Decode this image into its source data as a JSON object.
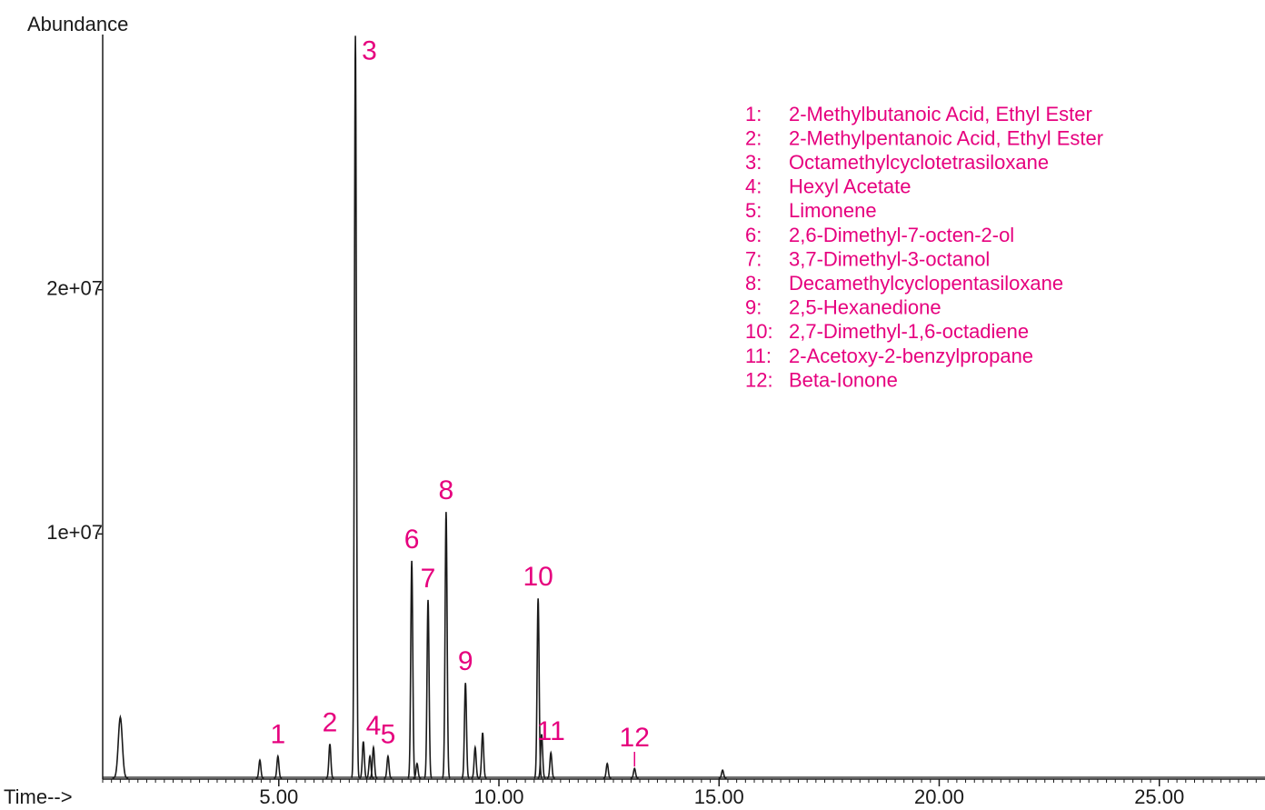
{
  "chart_data": {
    "type": "chromatogram",
    "y_label": "Abundance",
    "x_label": "Time-->",
    "x": [
      1.4,
      4.57,
      4.98,
      6.16,
      6.74,
      6.92,
      7.07,
      7.15,
      7.48,
      8.02,
      8.14,
      8.39,
      8.8,
      9.24,
      9.46,
      9.63,
      10.89,
      10.97,
      11.18,
      12.46,
      13.08,
      15.08
    ],
    "values": [
      2500000,
      740000,
      900000,
      1400000,
      30400000,
      1500000,
      900000,
      1260000,
      900000,
      8900000,
      600000,
      7300000,
      10900000,
      3900000,
      1260000,
      1860000,
      7360000,
      1800000,
      1040000,
      600000,
      400000,
      330000
    ],
    "peak_labels": [
      null,
      null,
      "1",
      "2",
      "3",
      null,
      null,
      "4",
      "5",
      "6",
      null,
      "7",
      "8",
      "9",
      null,
      null,
      "10",
      null,
      "11",
      null,
      "12",
      null
    ],
    "color": "#1a1a1a",
    "label_color": "#e6007e",
    "xlim": [
      1,
      27.4
    ],
    "ylim": [
      0,
      30450000
    ],
    "xticks": [
      {
        "value": 5,
        "label": "5.00"
      },
      {
        "value": 10,
        "label": "10.00"
      },
      {
        "value": 15,
        "label": "15.00"
      },
      {
        "value": 20,
        "label": "20.00"
      },
      {
        "value": 25,
        "label": "25.00"
      }
    ],
    "yticks": [
      {
        "value": 10000000,
        "label": "1e+07"
      },
      {
        "value": 20000000,
        "label": "2e+07"
      }
    ],
    "legend": [
      {
        "number": "1:",
        "name": "2-Methylbutanoic Acid, Ethyl Ester"
      },
      {
        "number": "2:",
        "name": "2-Methylpentanoic Acid, Ethyl Ester"
      },
      {
        "number": "3:",
        "name": "Octamethylcyclotetrasiloxane"
      },
      {
        "number": "4:",
        "name": "Hexyl Acetate"
      },
      {
        "number": "5:",
        "name": "Limonene"
      },
      {
        "number": "6:",
        "name": "2,6-Dimethyl-7-octen-2-ol"
      },
      {
        "number": "7:",
        "name": "3,7-Dimethyl-3-octanol"
      },
      {
        "number": "8:",
        "name": "Decamethylcyclopentasiloxane"
      },
      {
        "number": "9:",
        "name": "2,5-Hexanedione"
      },
      {
        "number": "10:",
        "name": "2,7-Dimethyl-1,6-octadiene"
      },
      {
        "number": "11:",
        "name": "2-Acetoxy-2-benzylpropane"
      },
      {
        "number": "12:",
        "name": "Beta-Ionone"
      }
    ]
  }
}
